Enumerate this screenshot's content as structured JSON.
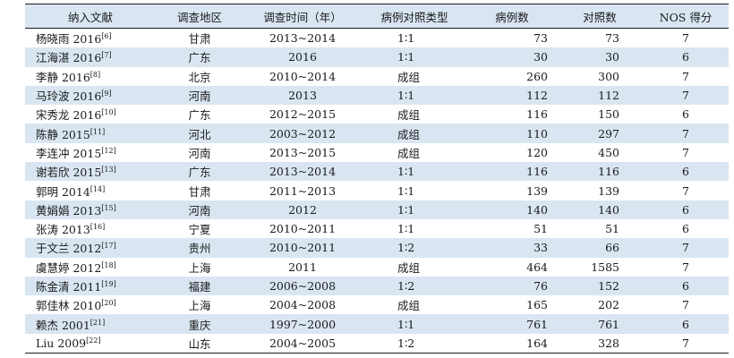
{
  "table": {
    "headers": [
      "纳入文献",
      "调查地区",
      "调查时间（年）",
      "病例对照类型",
      "病例数",
      "对照数",
      "NOS 得分"
    ],
    "rows": [
      {
        "author": "杨晓雨 2016",
        "ref": "[6]",
        "region": "甘肃",
        "time": "2013~2014",
        "type": "1∶1",
        "cases": "73",
        "controls": "73",
        "nos": "7"
      },
      {
        "author": "江海湛 2016",
        "ref": "[7]",
        "region": "广东",
        "time": "2016",
        "type": "1∶1",
        "cases": "30",
        "controls": "30",
        "nos": "6"
      },
      {
        "author": "李静 2016",
        "ref": "[8]",
        "region": "北京",
        "time": "2010~2014",
        "type": "成组",
        "cases": "260",
        "controls": "300",
        "nos": "7"
      },
      {
        "author": "马玲波 2016",
        "ref": "[9]",
        "region": "河南",
        "time": "2013",
        "type": "1∶1",
        "cases": "112",
        "controls": "112",
        "nos": "7"
      },
      {
        "author": "宋秀龙 2016",
        "ref": "[10]",
        "region": "广东",
        "time": "2012~2015",
        "type": "成组",
        "cases": "116",
        "controls": "150",
        "nos": "6"
      },
      {
        "author": "陈静 2015",
        "ref": "[11]",
        "region": "河北",
        "time": "2003~2012",
        "type": "成组",
        "cases": "110",
        "controls": "297",
        "nos": "7"
      },
      {
        "author": "李连冲 2015",
        "ref": "[12]",
        "region": "河南",
        "time": "2013~2015",
        "type": "成组",
        "cases": "120",
        "controls": "450",
        "nos": "7"
      },
      {
        "author": "谢若欣 2015",
        "ref": "[13]",
        "region": "广东",
        "time": "2013~2014",
        "type": "1∶1",
        "cases": "116",
        "controls": "116",
        "nos": "6"
      },
      {
        "author": "郭明 2014",
        "ref": "[14]",
        "region": "甘肃",
        "time": "2011~2013",
        "type": "1∶1",
        "cases": "139",
        "controls": "139",
        "nos": "7"
      },
      {
        "author": "黄娟娟 2013",
        "ref": "[15]",
        "region": "河南",
        "time": "2012",
        "type": "1∶1",
        "cases": "140",
        "controls": "140",
        "nos": "6"
      },
      {
        "author": "张涛 2013",
        "ref": "[16]",
        "region": "宁夏",
        "time": "2010~2011",
        "type": "1∶1",
        "cases": "51",
        "controls": "51",
        "nos": "6"
      },
      {
        "author": "于文兰 2012",
        "ref": "[17]",
        "region": "贵州",
        "time": "2010~2011",
        "type": "1∶2",
        "cases": "33",
        "controls": "66",
        "nos": "7"
      },
      {
        "author": "虞慧婷 2012",
        "ref": "[18]",
        "region": "上海",
        "time": "2011",
        "type": "成组",
        "cases": "464",
        "controls": "1585",
        "nos": "7"
      },
      {
        "author": "陈金清 2011",
        "ref": "[19]",
        "region": "福建",
        "time": "2006~2008",
        "type": "1∶2",
        "cases": "76",
        "controls": "152",
        "nos": "6"
      },
      {
        "author": "郭佳林 2010",
        "ref": "[20]",
        "region": "上海",
        "time": "2004~2008",
        "type": "成组",
        "cases": "165",
        "controls": "202",
        "nos": "7"
      },
      {
        "author": "赖杰 2001",
        "ref": "[21]",
        "region": "重庆",
        "time": "1997~2000",
        "type": "1∶1",
        "cases": "761",
        "controls": "761",
        "nos": "6"
      },
      {
        "author": "Liu 2009",
        "ref": "[22]",
        "region": "山东",
        "time": "2004~2005",
        "type": "1∶2",
        "cases": "164",
        "controls": "328",
        "nos": "7"
      }
    ]
  }
}
